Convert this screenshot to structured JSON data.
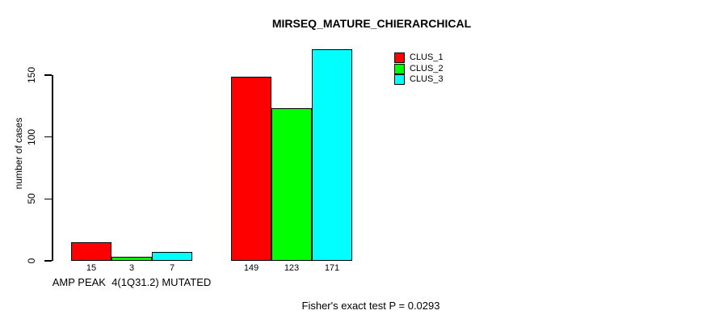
{
  "chart_data": {
    "type": "bar",
    "title": "MIRSEQ_MATURE_CHIERARCHICAL",
    "xlabel": "",
    "ylabel": "number of cases",
    "categories": [
      "AMP PEAK  4(1Q31.2) MUTATED",
      ""
    ],
    "series": [
      {
        "name": "CLUS_1",
        "color": "#ff0000",
        "values": [
          15,
          149
        ]
      },
      {
        "name": "CLUS_2",
        "color": "#00ff00",
        "values": [
          3,
          123
        ]
      },
      {
        "name": "CLUS_3",
        "color": "#00ffff",
        "values": [
          7,
          171
        ]
      }
    ],
    "bar_value_labels": [
      [
        "15",
        "3",
        "7"
      ],
      [
        "149",
        "123",
        "171"
      ]
    ],
    "yticks": [
      0,
      50,
      100,
      150
    ],
    "ylim": [
      0,
      175
    ],
    "grid": false,
    "legend_position": "top-right",
    "bar_border_color": "#000000",
    "background_color": "#ffffff",
    "annotation": "Fisher's exact test P = 0.0293"
  }
}
